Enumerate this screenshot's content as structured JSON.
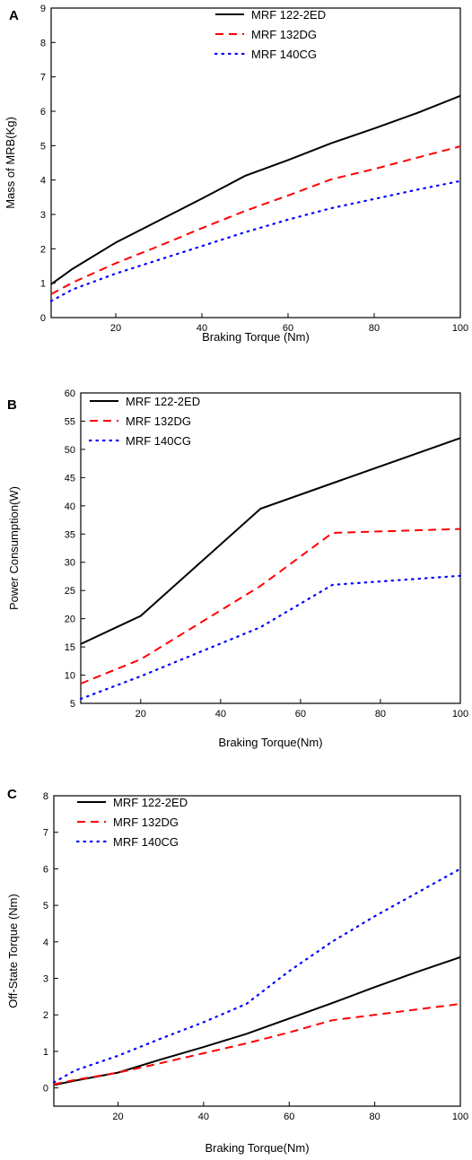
{
  "series_styles": [
    {
      "color": "#000000",
      "dash": "solid"
    },
    {
      "color": "#ff0000",
      "dash": "dashed"
    },
    {
      "color": "#0000ff",
      "dash": "dotted"
    }
  ],
  "chart_data": [
    {
      "panel": "A",
      "type": "line",
      "xlabel": "Braking Torque (Nm)",
      "ylabel": "Mass of MRB(Kg)",
      "xlim": [
        5,
        100
      ],
      "ylim": [
        0,
        9
      ],
      "xticks": [
        20,
        40,
        60,
        80,
        100
      ],
      "yticks": [
        0,
        1,
        2,
        3,
        4,
        5,
        6,
        7,
        8,
        9
      ],
      "legend": "top-right",
      "series": [
        {
          "name": "MRF 122-2ED",
          "x": [
            5,
            10,
            20,
            30,
            40,
            50,
            60,
            70,
            80,
            90,
            100
          ],
          "y": [
            0.97,
            1.42,
            2.18,
            2.82,
            3.46,
            4.12,
            4.58,
            5.07,
            5.5,
            5.95,
            6.45
          ]
        },
        {
          "name": "MRF 132DG",
          "x": [
            5,
            10,
            20,
            30,
            40,
            50,
            60,
            70,
            80,
            90,
            100
          ],
          "y": [
            0.68,
            1.02,
            1.58,
            2.08,
            2.6,
            3.1,
            3.55,
            4.02,
            4.32,
            4.65,
            4.98
          ]
        },
        {
          "name": "MRF 140CG",
          "x": [
            5,
            10,
            20,
            30,
            40,
            50,
            60,
            70,
            80,
            90,
            100
          ],
          "y": [
            0.48,
            0.82,
            1.28,
            1.68,
            2.08,
            2.48,
            2.85,
            3.18,
            3.45,
            3.72,
            3.97
          ]
        }
      ]
    },
    {
      "panel": "B",
      "type": "line",
      "xlabel": "Braking Torque(Nm)",
      "ylabel": "Power Consumption(W)",
      "xlim": [
        5,
        100
      ],
      "ylim": [
        5,
        60
      ],
      "xticks": [
        20,
        40,
        60,
        80,
        100
      ],
      "yticks": [
        5,
        10,
        15,
        20,
        25,
        30,
        35,
        40,
        45,
        50,
        55,
        60
      ],
      "legend": "top-left",
      "series": [
        {
          "name": "MRF 122-2ED",
          "x": [
            5,
            20,
            50,
            70,
            100
          ],
          "y": [
            15.5,
            20.5,
            39.5,
            44.5,
            52
          ]
        },
        {
          "name": "MRF 132DG",
          "x": [
            5,
            20,
            50,
            68,
            100
          ],
          "y": [
            8.5,
            12.8,
            25.8,
            35.2,
            35.9
          ]
        },
        {
          "name": "MRF 140CG",
          "x": [
            5,
            20,
            50,
            68,
            100
          ],
          "y": [
            5.8,
            9.8,
            18.5,
            26,
            27.6
          ]
        }
      ]
    },
    {
      "panel": "C",
      "type": "line",
      "xlabel": "Braking Torque(Nm)",
      "ylabel": "Off-State Torque (Nm)",
      "xlim": [
        5,
        100
      ],
      "ylim": [
        -0.5,
        8
      ],
      "xticks": [
        20,
        40,
        60,
        80,
        100
      ],
      "yticks": [
        0,
        1,
        2,
        3,
        4,
        5,
        6,
        7,
        8
      ],
      "legend": "top-left",
      "series": [
        {
          "name": "MRF 122-2ED",
          "x": [
            5,
            10,
            20,
            30,
            40,
            50,
            60,
            70,
            80,
            90,
            100
          ],
          "y": [
            0.08,
            0.2,
            0.42,
            0.78,
            1.12,
            1.48,
            1.9,
            2.32,
            2.76,
            3.18,
            3.58
          ]
        },
        {
          "name": "MRF 132DG",
          "x": [
            5,
            10,
            20,
            30,
            40,
            50,
            60,
            70,
            80,
            90,
            100
          ],
          "y": [
            0.1,
            0.22,
            0.42,
            0.68,
            0.95,
            1.22,
            1.52,
            1.85,
            2.0,
            2.15,
            2.3
          ]
        },
        {
          "name": "MRF 140CG",
          "x": [
            5,
            10,
            20,
            30,
            40,
            50,
            60,
            70,
            80,
            90,
            100
          ],
          "y": [
            0.15,
            0.48,
            0.88,
            1.35,
            1.8,
            2.3,
            3.2,
            4.0,
            4.7,
            5.35,
            6.0
          ]
        }
      ]
    }
  ]
}
